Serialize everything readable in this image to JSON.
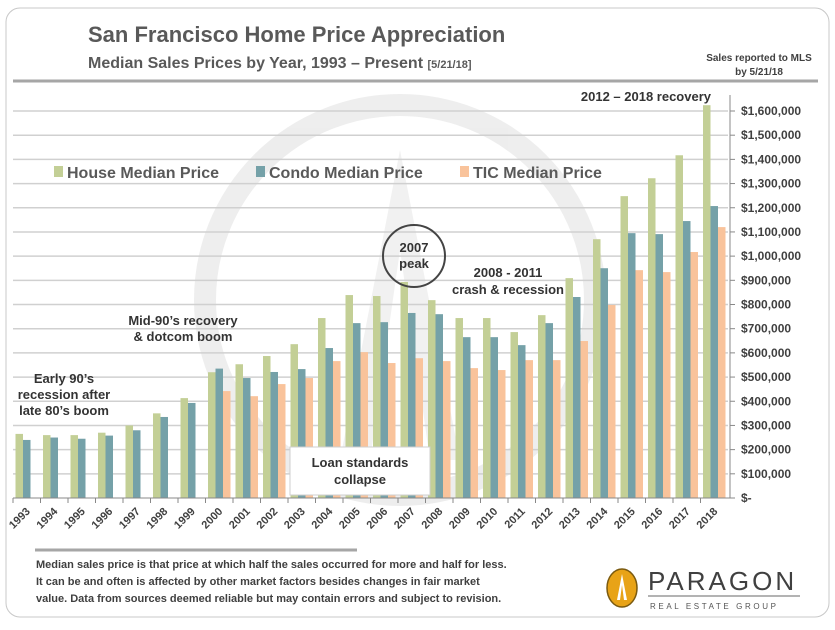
{
  "header": {
    "title": "San Francisco Home Price Appreciation",
    "subtitle": "Median Sales Prices by Year, 1993 – Present",
    "subtitle_date": "[5/21/18]",
    "note_line1": "Sales reported to MLS",
    "note_line2": "by 5/21/18"
  },
  "chart_data": {
    "type": "bar",
    "title": "San Francisco Home Price Appreciation",
    "categories": [
      "1993",
      "1994",
      "1995",
      "1996",
      "1997",
      "1998",
      "1999",
      "2000",
      "2001",
      "2002",
      "2003",
      "2004",
      "2005",
      "2006",
      "2007",
      "2008",
      "2009",
      "2010",
      "2011",
      "2012",
      "2013",
      "2014",
      "2015",
      "2016",
      "2017",
      "2018"
    ],
    "series": [
      {
        "name": "House Median Price",
        "color": "#c3cf96",
        "values": [
          265000,
          260000,
          260000,
          270000,
          300000,
          350000,
          413000,
          520000,
          553000,
          587000,
          636000,
          744000,
          839000,
          835000,
          893000,
          818000,
          744000,
          744000,
          686000,
          756000,
          909000,
          1070000,
          1248000,
          1322000,
          1417000,
          1624000
        ]
      },
      {
        "name": "Condo Median Price",
        "color": "#75a1a8",
        "values": [
          240000,
          250000,
          245000,
          258000,
          280000,
          335000,
          393000,
          535000,
          496000,
          521000,
          533000,
          620000,
          723000,
          727000,
          765000,
          760000,
          665000,
          665000,
          632000,
          723000,
          831000,
          950000,
          1095000,
          1091000,
          1145000,
          1207000
        ]
      },
      {
        "name": "TIC Median Price",
        "color": "#f9c39b",
        "values": [
          null,
          null,
          null,
          null,
          null,
          null,
          null,
          442000,
          421000,
          471000,
          496000,
          566000,
          603000,
          558000,
          578000,
          566000,
          537000,
          529000,
          570000,
          570000,
          649000,
          798000,
          942000,
          934000,
          1017000,
          1120000
        ]
      }
    ],
    "yticks": [
      "$-",
      "$100,000",
      "$200,000",
      "$300,000",
      "$400,000",
      "$500,000",
      "$600,000",
      "$700,000",
      "$800,000",
      "$900,000",
      "$1,000,000",
      "$1,100,000",
      "$1,200,000",
      "$1,300,000",
      "$1,400,000",
      "$1,500,000",
      "$1,600,000"
    ],
    "ylim": [
      0,
      1600000
    ],
    "grid": true,
    "y_axis_side": "right",
    "legend": "top-left",
    "annotations": {
      "early90s": [
        "Early 90’s",
        "recession after",
        "late 80’s boom"
      ],
      "mid90s": [
        "Mid-90’s recovery",
        "& dotcom boom"
      ],
      "peak": [
        "2007",
        "peak"
      ],
      "crash": [
        "2008 - 2011",
        "crash & recession"
      ],
      "loan": [
        "Loan standards",
        "collapse"
      ],
      "recovery": "2012 – 2018 recovery"
    }
  },
  "footer": {
    "lines": [
      "Median sales price is that price at which half the sales occurred for more and half for less.",
      "It can be and often is affected by other market factors besides changes in fair market",
      "value. Data from sources deemed reliable but may contain errors and subject to revision."
    ],
    "logo_name": "PARAGON",
    "logo_tagline": "REAL ESTATE GROUP",
    "logo_color": "#e8a317"
  }
}
